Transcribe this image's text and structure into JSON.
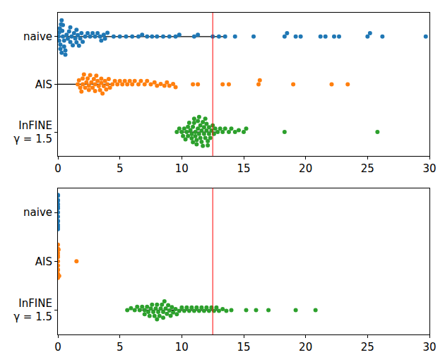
{
  "chart_data": [
    {
      "type": "swarm",
      "categories": [
        "naive",
        "AIS",
        "InFINE\nγ = 1.5"
      ],
      "colors": [
        "#1f77b4",
        "#ff7f0e",
        "#2ca02c"
      ],
      "values": [
        [
          0.05,
          0.1,
          0.1,
          0.15,
          0.2,
          0.2,
          0.25,
          0.3,
          0.3,
          0.35,
          0.4,
          0.4,
          0.5,
          0.5,
          0.6,
          0.6,
          0.7,
          0.8,
          0.9,
          1.0,
          1.0,
          1.1,
          1.2,
          1.3,
          1.4,
          1.5,
          1.5,
          1.6,
          1.7,
          1.8,
          1.9,
          2.0,
          2.2,
          2.4,
          2.6,
          2.8,
          3.0,
          3.2,
          3.4,
          3.5,
          3.7,
          3.8,
          4.0,
          4.5,
          5.0,
          5.5,
          6.0,
          6.5,
          6.8,
          7.2,
          7.6,
          8.0,
          8.5,
          9.0,
          9.5,
          9.8,
          11.0,
          11.3,
          12.5,
          13.0,
          13.5,
          14.3,
          15.8,
          18.3,
          18.5,
          19.2,
          19.6,
          21.2,
          21.6,
          22.3,
          22.7,
          25.0,
          25.2,
          26.2,
          29.7
        ],
        [
          1.6,
          1.7,
          1.8,
          1.9,
          2.0,
          2.0,
          2.1,
          2.2,
          2.3,
          2.4,
          2.5,
          2.5,
          2.6,
          2.7,
          2.8,
          2.9,
          3.0,
          3.0,
          3.1,
          3.2,
          3.3,
          3.4,
          3.5,
          3.5,
          3.6,
          3.7,
          3.8,
          3.9,
          4.0,
          4.1,
          4.2,
          4.4,
          4.6,
          4.8,
          5.0,
          5.2,
          5.4,
          5.6,
          5.8,
          6.0,
          6.2,
          6.5,
          6.7,
          7.0,
          7.2,
          7.5,
          7.8,
          8.0,
          8.3,
          8.6,
          8.8,
          9.0,
          9.3,
          9.5,
          10.9,
          11.3,
          13.3,
          13.8,
          16.2,
          16.3,
          19.0,
          22.1,
          23.4
        ],
        [
          9.6,
          9.8,
          10.0,
          10.1,
          10.2,
          10.3,
          10.4,
          10.5,
          10.5,
          10.6,
          10.7,
          10.8,
          10.8,
          10.9,
          10.9,
          11.0,
          11.0,
          11.1,
          11.1,
          11.2,
          11.2,
          11.3,
          11.3,
          11.4,
          11.4,
          11.5,
          11.5,
          11.6,
          11.6,
          11.7,
          11.7,
          11.8,
          11.8,
          11.9,
          11.9,
          12.0,
          12.0,
          12.1,
          12.1,
          12.2,
          12.2,
          12.3,
          12.4,
          12.5,
          12.6,
          12.7,
          12.9,
          13.1,
          13.3,
          13.5,
          13.8,
          14.0,
          14.3,
          14.6,
          15.0,
          15.2,
          18.3,
          25.8
        ]
      ],
      "intervals": [
        [
          0,
          13.4
        ],
        [
          0,
          4.3
        ],
        [
          9.8,
          13.0
        ]
      ],
      "reference_line": 12.5,
      "xlim": [
        0,
        30
      ],
      "xticks": [
        0,
        5,
        10,
        15,
        20,
        25,
        30
      ],
      "legend": false,
      "grid": false
    },
    {
      "type": "swarm",
      "categories": [
        "naive",
        "AIS",
        "InFINE\nγ = 1.5"
      ],
      "colors": [
        "#1f77b4",
        "#ff7f0e",
        "#2ca02c"
      ],
      "values": [
        [
          0,
          0,
          0,
          0,
          0,
          0,
          0,
          0,
          0,
          0,
          0,
          0,
          0,
          0
        ],
        [
          0,
          0,
          0,
          0,
          0,
          0,
          0,
          0,
          0,
          0,
          0,
          0.05,
          0.1,
          1.5
        ],
        [
          5.6,
          5.9,
          6.2,
          6.4,
          6.6,
          6.8,
          7.0,
          7.0,
          7.2,
          7.3,
          7.4,
          7.5,
          7.6,
          7.7,
          7.8,
          7.9,
          8.0,
          8.0,
          8.1,
          8.2,
          8.3,
          8.4,
          8.5,
          8.5,
          8.6,
          8.7,
          8.8,
          8.9,
          9.0,
          9.1,
          9.2,
          9.3,
          9.5,
          9.6,
          9.8,
          10.0,
          10.2,
          10.4,
          10.6,
          10.8,
          11.0,
          11.2,
          11.4,
          11.6,
          11.8,
          12.0,
          12.2,
          12.4,
          12.6,
          12.8,
          13.0,
          13.3,
          13.6,
          14.0,
          15.2,
          16.0,
          17.0,
          19.2,
          20.8
        ]
      ],
      "intervals": [
        [
          0,
          0
        ],
        [
          0,
          0.1
        ],
        [
          6.7,
          13.1
        ]
      ],
      "reference_line": 12.5,
      "xlim": [
        0,
        30
      ],
      "xticks": [
        0,
        5,
        10,
        15,
        20,
        25,
        30
      ],
      "legend": false,
      "grid": false
    }
  ]
}
